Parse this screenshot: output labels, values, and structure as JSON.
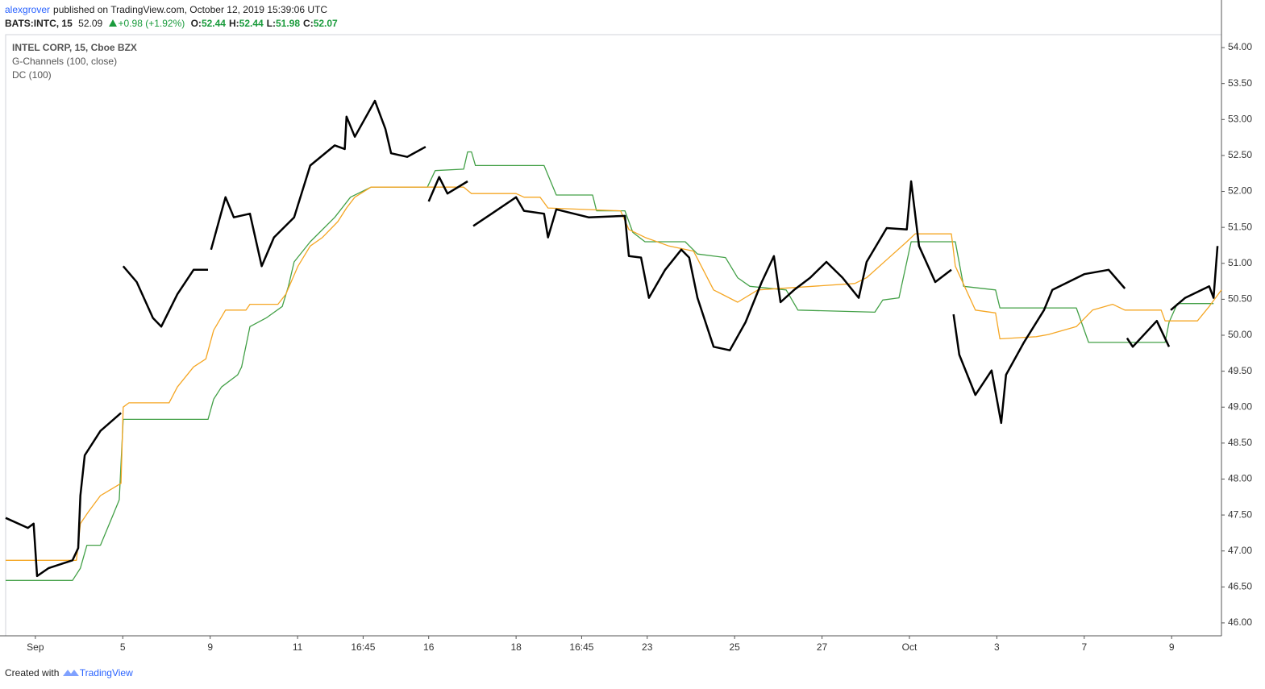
{
  "header": {
    "author": "alexgrover",
    "published": "published on TradingView.com, October 12, 2019 15:39:06 UTC",
    "symbol": "BATS:INTC, 15",
    "last": 52.09,
    "change": "+0.98 (+1.92%)",
    "ohlc": [
      {
        "label": "O:",
        "value": 52.44
      },
      {
        "label": "H:",
        "value": 52.44
      },
      {
        "label": "L:",
        "value": 51.98
      },
      {
        "label": "C:",
        "value": 52.07
      }
    ]
  },
  "footer": {
    "created": "Created with",
    "brand": "TradingView"
  },
  "chart_data": {
    "type": "line",
    "xlim": [
      -0.68,
      27.14
    ],
    "ylim": [
      45.82,
      54.18
    ],
    "xticks": [
      {
        "value": 0,
        "label": "Sep"
      },
      {
        "value": 2,
        "label": "5"
      },
      {
        "value": 4,
        "label": "9"
      },
      {
        "value": 6,
        "label": "11"
      },
      {
        "value": 7.5,
        "label": "16:45"
      },
      {
        "value": 9,
        "label": "16"
      },
      {
        "value": 11,
        "label": "18"
      },
      {
        "value": 12.5,
        "label": "16:45"
      },
      {
        "value": 14,
        "label": "23"
      },
      {
        "value": 16,
        "label": "25"
      },
      {
        "value": 18,
        "label": "27"
      },
      {
        "value": 20,
        "label": "Oct"
      },
      {
        "value": 22,
        "label": "3"
      },
      {
        "value": 24,
        "label": "7"
      },
      {
        "value": 26,
        "label": "9"
      }
    ],
    "yticks": [
      {
        "value": 46,
        "label": "46.00"
      },
      {
        "value": 46.5,
        "label": "46.50"
      },
      {
        "value": 47,
        "label": "47.00"
      },
      {
        "value": 47.5,
        "label": "47.50"
      },
      {
        "value": 48,
        "label": "48.00"
      },
      {
        "value": 48.5,
        "label": "48.50"
      },
      {
        "value": 49,
        "label": "49.00"
      },
      {
        "value": 49.5,
        "label": "49.50"
      },
      {
        "value": 50,
        "label": "50.00"
      },
      {
        "value": 50.5,
        "label": "50.50"
      },
      {
        "value": 51,
        "label": "51.00"
      },
      {
        "value": 51.5,
        "label": "51.50"
      },
      {
        "value": 52,
        "label": "52.00"
      },
      {
        "value": 52.5,
        "label": "52.50"
      },
      {
        "value": 53,
        "label": "53.00"
      },
      {
        "value": 53.5,
        "label": "53.50"
      },
      {
        "value": 54,
        "label": "54.00"
      }
    ],
    "series": [
      {
        "name": "INTEL CORP, 15, Cboe BZX",
        "color": "#000000",
        "width": 2.5,
        "x": [
          -0.68,
          -0.17,
          -0.04,
          0.04,
          0.3,
          0.85,
          0.98,
          1.03,
          1.13,
          1.49,
          1.96,
          1.98,
          2.01,
          2.32,
          2.69,
          2.88,
          3.25,
          3.62,
          3.95,
          3.98,
          4.02,
          4.35,
          4.54,
          4.91,
          5.18,
          5.46,
          5.92,
          6.29,
          6.85,
          7.08,
          7.12,
          7.31,
          7.77,
          8.01,
          8.14,
          8.51,
          8.93,
          8.96,
          9.0,
          9.24,
          9.43,
          9.89,
          9.95,
          10.02,
          10.44,
          11.0,
          11.18,
          11.64,
          11.73,
          11.92,
          12.66,
          13.49,
          13.58,
          13.86,
          14.04,
          14.41,
          14.78,
          14.96,
          15.15,
          15.52,
          15.89,
          16.25,
          16.62,
          16.9,
          17.05,
          17.36,
          17.73,
          18.1,
          18.47,
          18.84,
          19.02,
          19.48,
          19.94,
          20.04,
          20.22,
          20.59,
          20.96,
          20.98,
          21.01,
          21.14,
          21.51,
          21.88,
          22.1,
          22.21,
          22.62,
          23.08,
          23.27,
          24.0,
          24.56,
          24.93,
          24.95,
          24.98,
          25.11,
          25.66,
          25.94,
          25.96,
          25.98,
          26.31,
          26.86,
          26.96,
          27.05
        ],
        "values": [
          47.46,
          47.32,
          47.38,
          46.65,
          46.76,
          46.87,
          47.04,
          47.77,
          48.33,
          48.67,
          48.92,
          null,
          50.96,
          50.74,
          50.24,
          50.12,
          50.57,
          50.91,
          50.91,
          null,
          51.19,
          51.92,
          51.64,
          51.69,
          50.96,
          51.36,
          51.64,
          52.36,
          52.64,
          52.59,
          53.04,
          52.76,
          53.26,
          52.87,
          52.53,
          52.48,
          52.62,
          null,
          51.86,
          52.2,
          51.97,
          52.14,
          null,
          51.52,
          51.69,
          51.92,
          51.73,
          51.69,
          51.36,
          51.75,
          51.64,
          51.66,
          51.1,
          51.08,
          50.52,
          50.91,
          51.19,
          51.08,
          50.52,
          49.84,
          49.79,
          50.18,
          50.74,
          51.1,
          50.46,
          50.63,
          50.8,
          51.02,
          50.8,
          50.52,
          51.02,
          51.49,
          51.47,
          52.14,
          51.24,
          50.74,
          50.91,
          null,
          50.29,
          49.73,
          49.17,
          49.51,
          48.78,
          49.45,
          49.9,
          50.35,
          50.63,
          50.85,
          50.91,
          50.65,
          null,
          49.96,
          49.84,
          50.2,
          49.84,
          null,
          50.35,
          50.52,
          50.68,
          50.52,
          51.24
        ]
      },
      {
        "name": "G-Channels (100, close)",
        "color": "#f5a623",
        "width": 1.3,
        "x": [
          -0.68,
          0.94,
          1.03,
          1.22,
          1.49,
          1.96,
          2.01,
          2.14,
          3.06,
          3.25,
          3.62,
          3.9,
          4.08,
          4.35,
          4.82,
          4.91,
          5.55,
          5.73,
          6.01,
          6.29,
          6.57,
          6.92,
          7.12,
          7.31,
          7.68,
          9.8,
          9.98,
          11.0,
          11.18,
          11.55,
          11.73,
          13.39,
          13.58,
          13.95,
          14.5,
          15.06,
          15.52,
          16.07,
          16.53,
          18.75,
          19.02,
          19.48,
          19.94,
          20.13,
          20.96,
          21.05,
          21.51,
          21.97,
          22.07,
          22.9,
          23.18,
          23.82,
          24.19,
          24.65,
          24.93,
          25.76,
          25.85,
          26.59,
          26.86,
          27.14
        ],
        "values": [
          46.87,
          46.87,
          47.38,
          47.55,
          47.77,
          47.94,
          49.0,
          49.06,
          49.06,
          49.28,
          49.56,
          49.67,
          50.07,
          50.35,
          50.35,
          50.43,
          50.43,
          50.57,
          50.96,
          51.24,
          51.36,
          51.58,
          51.77,
          51.92,
          52.06,
          52.06,
          51.97,
          51.97,
          51.92,
          51.92,
          51.77,
          51.73,
          51.47,
          51.36,
          51.24,
          51.17,
          50.63,
          50.46,
          50.63,
          50.72,
          50.8,
          51.05,
          51.3,
          51.41,
          51.41,
          50.96,
          50.35,
          50.31,
          49.95,
          49.98,
          50.01,
          50.12,
          50.35,
          50.43,
          50.35,
          50.35,
          50.2,
          50.2,
          50.4,
          50.63
        ]
      },
      {
        "name": "DC (100)",
        "color": "#43a047",
        "width": 1.3,
        "x": [
          -0.68,
          0.85,
          1.03,
          1.18,
          1.49,
          1.77,
          1.92,
          2.01,
          3.95,
          4.08,
          4.26,
          4.63,
          4.72,
          4.91,
          5.28,
          5.65,
          5.79,
          5.92,
          6.29,
          6.85,
          7.21,
          7.68,
          8.97,
          9.15,
          9.8,
          9.89,
          9.98,
          10.07,
          11.64,
          11.92,
          12.75,
          12.84,
          13.49,
          13.67,
          13.95,
          14.87,
          15.15,
          15.79,
          16.07,
          16.35,
          17.18,
          17.45,
          19.21,
          19.39,
          19.76,
          20.04,
          21.05,
          21.24,
          21.97,
          22.07,
          23.82,
          24.1,
          25.85,
          25.94,
          26.13,
          26.96
        ],
        "values": [
          46.59,
          46.59,
          46.76,
          47.08,
          47.08,
          47.49,
          47.71,
          48.83,
          48.83,
          49.11,
          49.28,
          49.45,
          49.56,
          50.12,
          50.24,
          50.4,
          50.68,
          51.02,
          51.3,
          51.64,
          51.92,
          52.06,
          52.06,
          52.29,
          52.31,
          52.55,
          52.55,
          52.36,
          52.36,
          51.95,
          51.95,
          51.73,
          51.73,
          51.43,
          51.3,
          51.3,
          51.13,
          51.08,
          50.8,
          50.68,
          50.63,
          50.35,
          50.32,
          50.49,
          50.52,
          51.3,
          51.3,
          50.68,
          50.63,
          50.38,
          50.38,
          49.9,
          49.9,
          50.18,
          50.44,
          50.44
        ]
      }
    ]
  }
}
